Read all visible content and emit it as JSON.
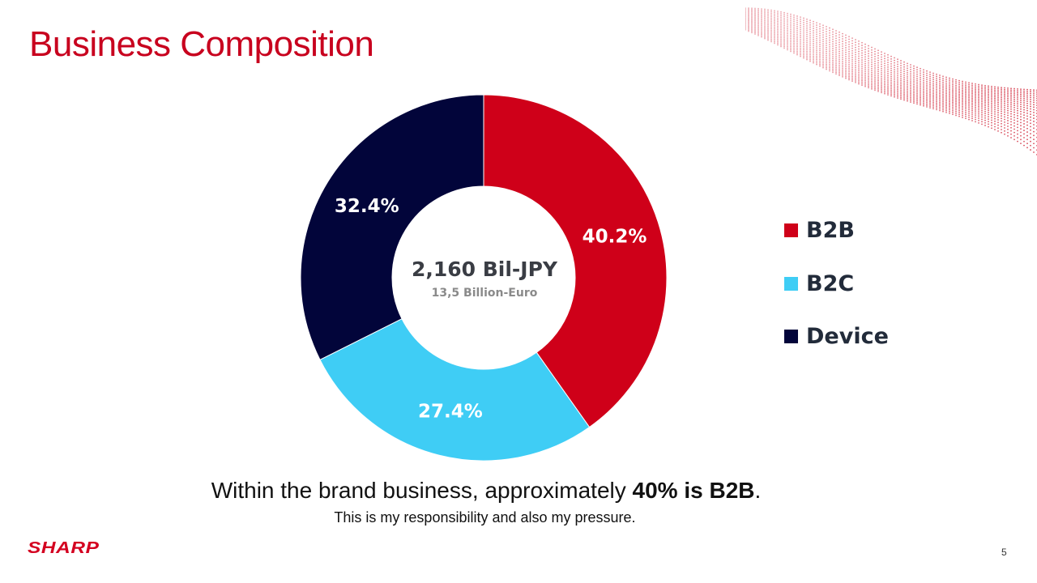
{
  "slide": {
    "title": "Business Composition",
    "caption_prefix": "Within the brand business, approximately ",
    "caption_bold": "40% is B2B",
    "caption_suffix": ".",
    "subcaption": "This is my responsibility and also my pressure.",
    "logo_text": "SHARP",
    "page_number": "5",
    "brand_color": "#c8001e"
  },
  "chart_data": {
    "type": "pie",
    "donut": true,
    "center_label": "2,160 Bil-JPY",
    "center_sublabel": "13,5 Billion-Euro",
    "categories": [
      "B2B",
      "B2C",
      "Device"
    ],
    "values": [
      40.2,
      27.4,
      32.4
    ],
    "value_labels": [
      "40.2%",
      "27.4%",
      "32.4%"
    ],
    "colors": [
      "#cf0019",
      "#3fcdf5",
      "#02053a"
    ],
    "legend_placement": "right",
    "title": "",
    "xlabel": "",
    "ylabel": ""
  }
}
